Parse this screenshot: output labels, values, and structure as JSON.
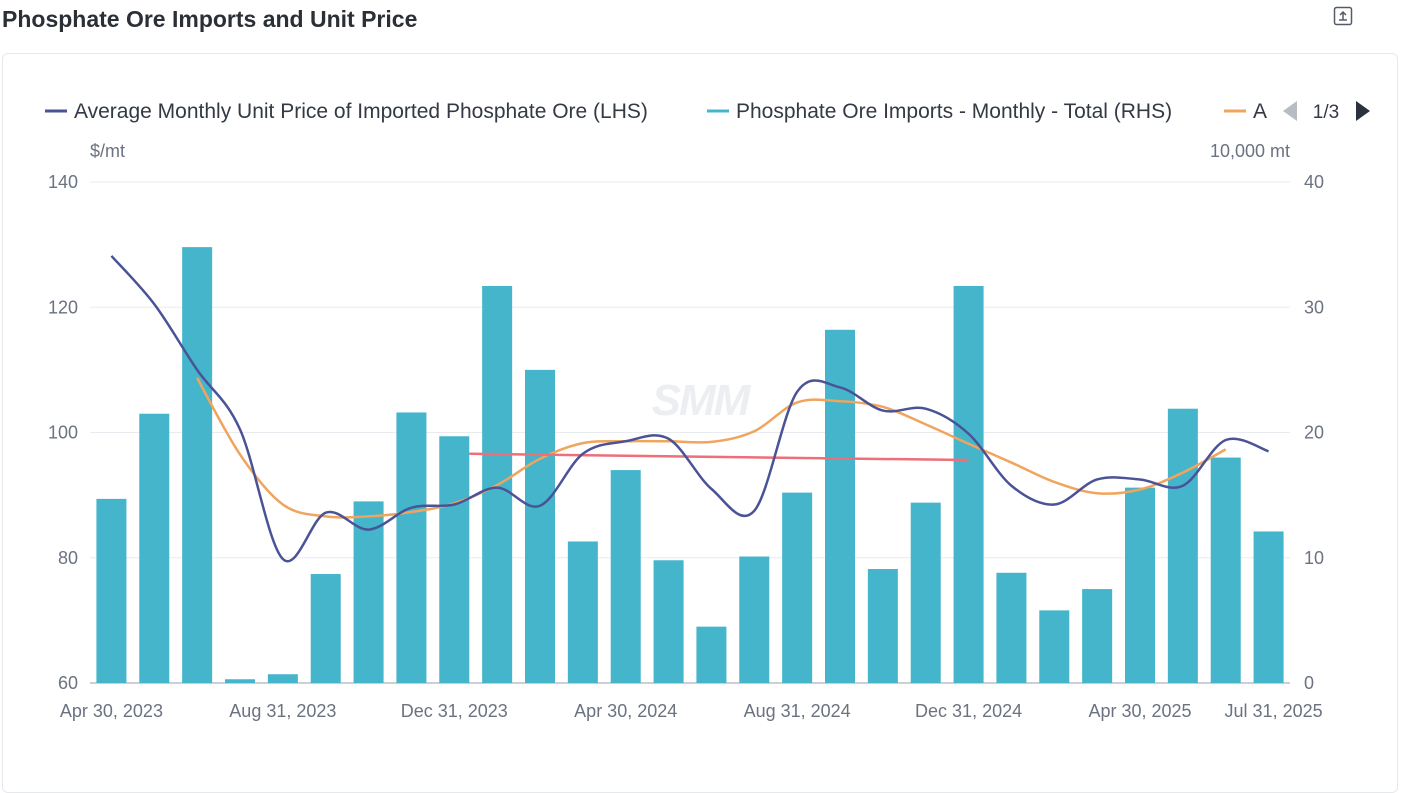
{
  "header": {
    "title": "Phosphate Ore Imports and Unit Price",
    "export_icon": "export-icon"
  },
  "watermark": "SMM",
  "colors": {
    "price_line": "#4a5396",
    "imports_bar": "#45b5cc",
    "line3": "#f0a45c",
    "trend": "#ec6f79",
    "grid": "#e8ebef"
  },
  "chart_data": {
    "type": "bar",
    "legend": {
      "items": [
        {
          "label": "Average Monthly Unit Price of Imported Phosphate Ore (LHS)",
          "color": "#4a5396"
        },
        {
          "label": "Phosphate Ore Imports - Monthly - Total (RHS)",
          "color": "#45b5cc"
        },
        {
          "label": "A",
          "color": "#f0a45c"
        }
      ],
      "page": "1/3",
      "placement": "top"
    },
    "y_left": {
      "unit": "$/mt",
      "ticks": [
        "140",
        "120",
        "100",
        "80",
        "60"
      ],
      "range": [
        60,
        140
      ]
    },
    "y_right": {
      "unit": "10,000 mt",
      "ticks": [
        "40",
        "30",
        "20",
        "10",
        "0"
      ],
      "range": [
        0,
        40
      ]
    },
    "x_labels": [
      {
        "index": 0,
        "text": "Apr 30, 2023"
      },
      {
        "index": 4,
        "text": "Aug 31, 2023"
      },
      {
        "index": 8,
        "text": "Dec 31, 2023"
      },
      {
        "index": 12,
        "text": "Apr 30, 2024"
      },
      {
        "index": 16,
        "text": "Aug 31, 2024"
      },
      {
        "index": 20,
        "text": "Dec 31, 2024"
      },
      {
        "index": 24,
        "text": "Apr 30, 2025"
      },
      {
        "index": 27,
        "text": "Jul 31, 2025"
      }
    ],
    "categories": [
      "2023-04",
      "2023-05",
      "2023-06",
      "2023-07",
      "2023-08",
      "2023-09",
      "2023-10",
      "2023-11",
      "2023-12",
      "2024-01",
      "2024-02",
      "2024-03",
      "2024-04",
      "2024-05",
      "2024-06",
      "2024-07",
      "2024-08",
      "2024-09",
      "2024-10",
      "2024-11",
      "2024-12",
      "2025-01",
      "2025-02",
      "2025-03",
      "2025-04",
      "2025-05",
      "2025-06",
      "2025-07"
    ],
    "series": [
      {
        "name": "Phosphate Ore Imports - Monthly - Total (RHS)",
        "type": "bar",
        "axis": "right",
        "values": [
          14.7,
          21.5,
          34.8,
          0.3,
          0.7,
          8.7,
          14.5,
          21.6,
          19.7,
          31.7,
          25.0,
          11.3,
          17.0,
          9.8,
          4.5,
          10.1,
          15.2,
          28.2,
          9.1,
          14.4,
          31.7,
          8.8,
          5.8,
          7.5,
          15.6,
          21.9,
          18.0,
          12.1
        ]
      },
      {
        "name": "Average Monthly Unit Price of Imported Phosphate Ore (LHS)",
        "type": "line",
        "axis": "left",
        "values": [
          128.2,
          120.5,
          110.0,
          100.5,
          79.8,
          87.2,
          84.5,
          88.0,
          88.5,
          91.2,
          88.3,
          96.6,
          98.6,
          99.0,
          91.0,
          87.5,
          106.5,
          107.2,
          103.5,
          103.8,
          99.8,
          91.5,
          88.5,
          92.5,
          92.5,
          91.5,
          98.8,
          97.0
        ]
      },
      {
        "name": "A",
        "type": "line",
        "axis": "left",
        "values": [
          null,
          null,
          108.7,
          96.5,
          88.5,
          86.6,
          86.6,
          87.3,
          88.7,
          91.6,
          95.8,
          98.3,
          98.6,
          98.6,
          98.5,
          100.2,
          104.8,
          105.0,
          104.1,
          101.3,
          98.2,
          95.2,
          92.1,
          90.3,
          90.9,
          93.6,
          97.3,
          null
        ]
      },
      {
        "type": "line",
        "axis": "left",
        "start": {
          "index": 8.35,
          "y": 96.6
        },
        "end": {
          "index": 20.0,
          "y": 95.6
        }
      }
    ]
  }
}
